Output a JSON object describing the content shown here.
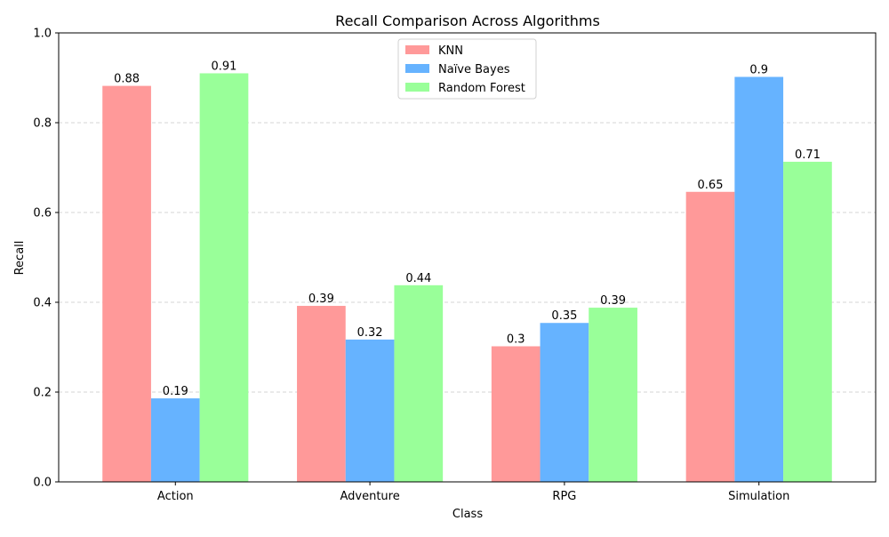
{
  "chart_data": {
    "type": "bar",
    "title": "Recall Comparison Across Algorithms",
    "xlabel": "Class",
    "ylabel": "Recall",
    "categories": [
      "Action",
      "Adventure",
      "RPG",
      "Simulation"
    ],
    "ylim": [
      0,
      1.0
    ],
    "yticks": [
      0.0,
      0.2,
      0.4,
      0.6,
      0.8,
      1.0
    ],
    "ytick_labels": [
      "0.0",
      "0.2",
      "0.4",
      "0.6",
      "0.8",
      "1.0"
    ],
    "grid": "y-dashed",
    "legend_position": "top-center",
    "series": [
      {
        "name": "KNN",
        "color": "#ff9999",
        "values": [
          0.882,
          0.392,
          0.302,
          0.646
        ],
        "labels": [
          "0.88",
          "0.39",
          "0.3",
          "0.65"
        ]
      },
      {
        "name": "Naïve Bayes",
        "color": "#66b3ff",
        "values": [
          0.186,
          0.317,
          0.354,
          0.902
        ],
        "labels": [
          "0.19",
          "0.32",
          "0.35",
          "0.9"
        ]
      },
      {
        "name": "Random Forest",
        "color": "#99ff99",
        "values": [
          0.91,
          0.438,
          0.388,
          0.713
        ],
        "labels": [
          "0.91",
          "0.44",
          "0.39",
          "0.71"
        ]
      }
    ]
  }
}
